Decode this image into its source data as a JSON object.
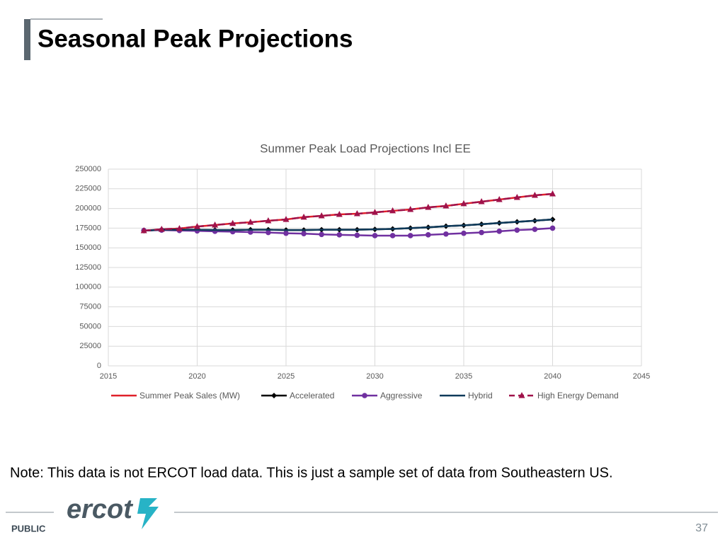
{
  "header": {
    "title": "Seasonal Peak Projections"
  },
  "chart_data": {
    "type": "line",
    "title": "Summer Peak Load Projections Incl EE",
    "x": [
      2017,
      2018,
      2019,
      2020,
      2021,
      2022,
      2023,
      2024,
      2025,
      2026,
      2027,
      2028,
      2029,
      2030,
      2031,
      2032,
      2033,
      2034,
      2035,
      2036,
      2037,
      2038,
      2039,
      2040
    ],
    "series": [
      {
        "name": "Summer Peak Sales (MW)",
        "color": "#e0202a",
        "dash": "none",
        "marker": "none",
        "values": [
          171800,
          173600,
          174500,
          177000,
          179000,
          181000,
          182500,
          184400,
          186000,
          189000,
          190600,
          192400,
          193300,
          195000,
          197000,
          198700,
          201400,
          203200,
          206000,
          208600,
          211300,
          214000,
          216700,
          218500
        ]
      },
      {
        "name": "Accelerated",
        "color": "#000000",
        "dash": "none",
        "marker": "diamond",
        "values": [
          171800,
          173000,
          173000,
          173000,
          172500,
          172500,
          173000,
          173000,
          172500,
          172500,
          173000,
          173000,
          173000,
          173500,
          174000,
          175000,
          176000,
          177500,
          178500,
          180000,
          181500,
          183000,
          184500,
          186000
        ]
      },
      {
        "name": "Aggressive",
        "color": "#7030a0",
        "dash": "none",
        "marker": "circle",
        "values": [
          172000,
          172500,
          172000,
          171500,
          171000,
          170500,
          170000,
          169500,
          168500,
          168000,
          167000,
          166500,
          166000,
          165500,
          165500,
          165500,
          166500,
          167500,
          168500,
          169500,
          171000,
          172500,
          173500,
          175000
        ]
      },
      {
        "name": "Hybrid",
        "color": "#0e3a5a",
        "dash": "none",
        "marker": "none",
        "values": [
          171800,
          173000,
          173000,
          173000,
          172500,
          172500,
          173000,
          173000,
          172500,
          172500,
          173000,
          173000,
          173000,
          173500,
          174000,
          175000,
          176000,
          177500,
          178500,
          180000,
          181500,
          183000,
          184500,
          186000
        ]
      },
      {
        "name": "High Energy Demand",
        "color": "#a0124a",
        "dash": "dashed",
        "marker": "triangle",
        "values": [
          171800,
          173600,
          174500,
          177000,
          179000,
          181000,
          182500,
          184400,
          186000,
          189000,
          190600,
          192400,
          193300,
          195000,
          197000,
          198700,
          201400,
          203200,
          206000,
          208600,
          211300,
          214000,
          216700,
          218500
        ]
      }
    ],
    "xlim": [
      2015,
      2045
    ],
    "xticks": [
      2015,
      2020,
      2025,
      2030,
      2035,
      2040,
      2045
    ],
    "ylim": [
      0,
      250000
    ],
    "yticks": [
      0,
      25000,
      50000,
      75000,
      100000,
      125000,
      150000,
      175000,
      200000,
      225000,
      250000
    ],
    "grid": true,
    "legend": "bottom"
  },
  "note": "Note: This data is not ERCOT load data. This is just a sample set of data from Southeastern US.",
  "footer": {
    "logo": "ercot",
    "label": "PUBLIC",
    "page": "37"
  }
}
